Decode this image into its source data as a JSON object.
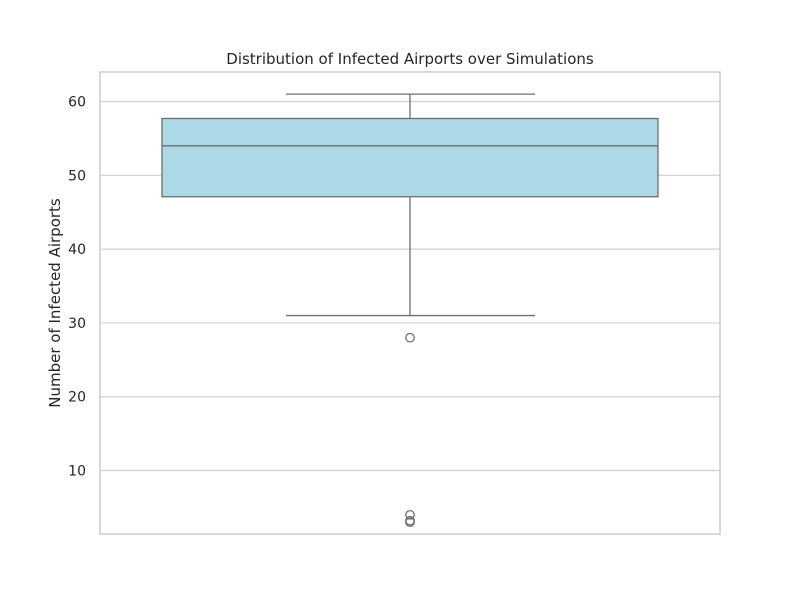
{
  "chart_data": {
    "type": "box",
    "title": "Distribution of Infected Airports over Simulations",
    "xlabel": "",
    "ylabel": "Number of Infected Airports",
    "ylim": [
      1.4,
      64.0
    ],
    "yticks": [
      10,
      20,
      30,
      40,
      50,
      60
    ],
    "grid": true,
    "box": {
      "q1": 47.1,
      "median": 54.0,
      "q3": 57.7,
      "whisker_low": 31.0,
      "whisker_high": 61.0,
      "outliers": [
        28.0,
        4.0,
        3.2,
        3.0
      ]
    },
    "colors": {
      "box_fill": "#add8e6",
      "box_line": "#6e6e6e",
      "grid": "#d0d0d0",
      "frame": "#cccccc",
      "text": "#262626"
    }
  }
}
